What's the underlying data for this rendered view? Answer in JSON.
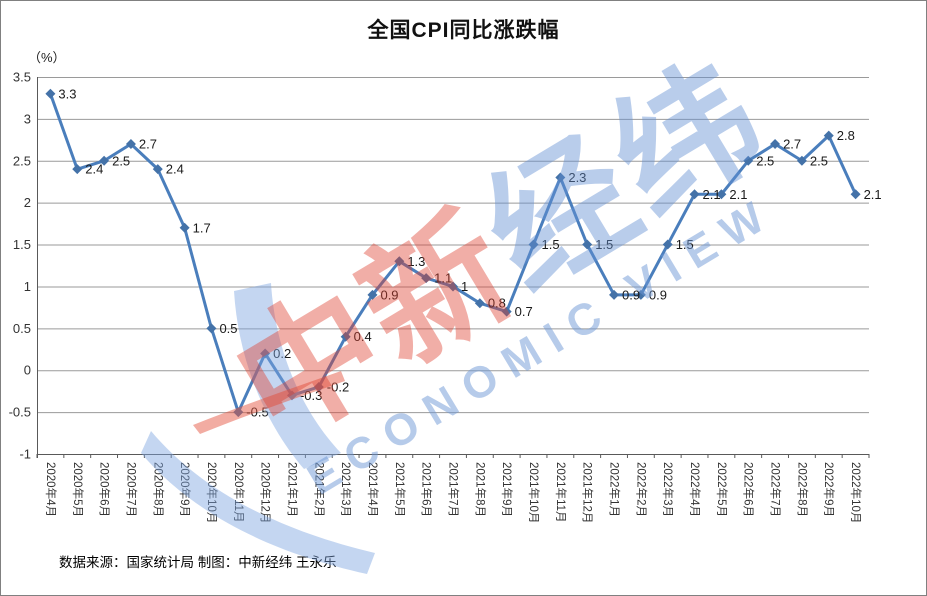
{
  "title": "全国CPI同比涨跌幅",
  "y_axis_unit_label": "（%）",
  "footer": {
    "source_note": "数据来源：国家统计局 制图：中新经纬 王永乐"
  },
  "watermark": {
    "cn_red": "中新",
    "cn_blue": "经纬",
    "en": "ECONOMIC VIEW",
    "red_color": "#de3e2d",
    "blue_color": "#6491d2"
  },
  "colors": {
    "line": "#4a7ebc",
    "marker": "#4472a8",
    "grid": "#9a9a9a",
    "axis": "#595959",
    "tick_label": "#333333",
    "data_label": "#1a1a1a"
  },
  "chart_data": {
    "type": "line",
    "title": "全国CPI同比涨跌幅",
    "xlabel": "",
    "ylabel": "（%）",
    "ylim": [
      -1,
      3.5
    ],
    "ytick_step": 0.5,
    "grid": true,
    "legend": false,
    "marker": "diamond",
    "categories": [
      "2020年4月",
      "2020年5月",
      "2020年6月",
      "2020年7月",
      "2020年8月",
      "2020年9月",
      "2020年10月",
      "2020年11月",
      "2020年12月",
      "2021年1月",
      "2021年2月",
      "2021年3月",
      "2021年4月",
      "2021年5月",
      "2021年6月",
      "2021年7月",
      "2021年8月",
      "2021年9月",
      "2021年10月",
      "2021年11月",
      "2021年12月",
      "2022年1月",
      "2022年2月",
      "2022年3月",
      "2022年4月",
      "2022年5月",
      "2022年6月",
      "2022年7月",
      "2022年8月",
      "2022年9月",
      "2022年10月"
    ],
    "values": [
      3.3,
      2.4,
      2.5,
      2.7,
      2.4,
      1.7,
      0.5,
      -0.5,
      0.2,
      -0.3,
      -0.2,
      0.4,
      0.9,
      1.3,
      1.1,
      1.0,
      0.8,
      0.7,
      1.5,
      2.3,
      1.5,
      0.9,
      0.9,
      1.5,
      2.1,
      2.1,
      2.5,
      2.7,
      2.5,
      2.8,
      2.1
    ]
  }
}
